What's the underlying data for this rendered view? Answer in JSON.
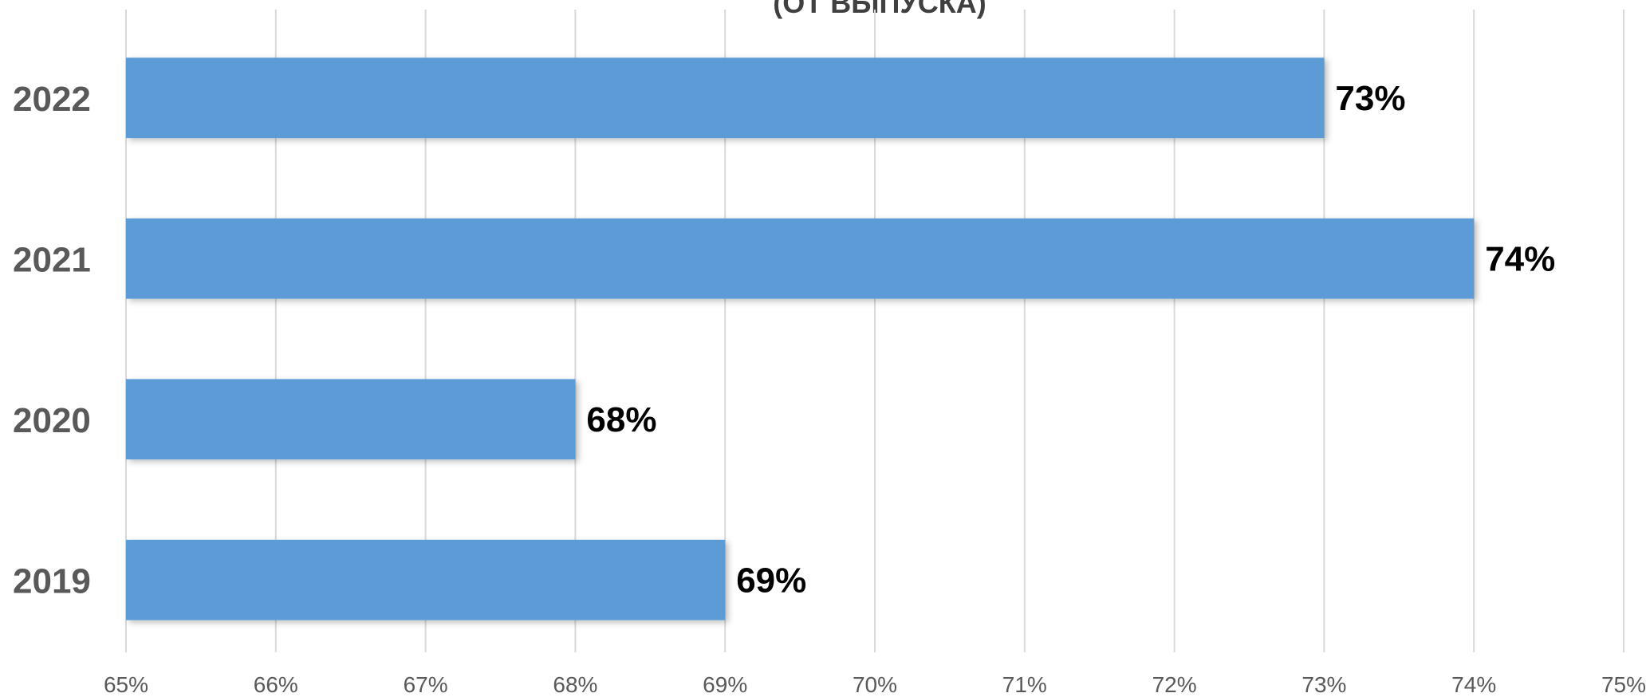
{
  "chart_data": {
    "type": "bar",
    "orientation": "horizontal",
    "title": "(ОТ ВЫПУСКА)",
    "categories": [
      "2022",
      "2021",
      "2020",
      "2019"
    ],
    "values": [
      73,
      74,
      68,
      69
    ],
    "data_labels": [
      "73%",
      "74%",
      "68%",
      "69%"
    ],
    "xlim": [
      65,
      75
    ],
    "x_ticks": [
      "65%",
      "66%",
      "67%",
      "68%",
      "69%",
      "70%",
      "71%",
      "72%",
      "73%",
      "74%",
      "75%"
    ],
    "xlabel": "",
    "ylabel": "",
    "grid": "vertical",
    "legend": "none",
    "bar_color": "#5b9bd5"
  }
}
